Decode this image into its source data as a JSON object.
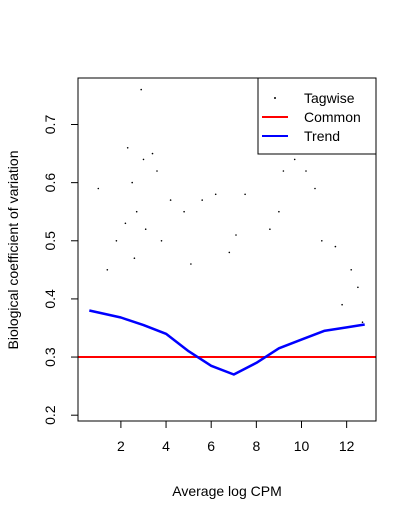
{
  "chart_data": {
    "type": "scatter",
    "title": "",
    "xlabel": "Average log CPM",
    "ylabel": "Biological coefficient of variation",
    "xlim": [
      0.1,
      13.3
    ],
    "ylim": [
      0.19,
      0.78
    ],
    "xticks": [
      2,
      4,
      6,
      8,
      10,
      12
    ],
    "yticks": [
      0.2,
      0.3,
      0.4,
      0.5,
      0.6,
      0.7
    ],
    "grid": false,
    "legend_position": "top-right",
    "legend": [
      {
        "label": "Tagwise",
        "kind": "point",
        "color": "#000000"
      },
      {
        "label": "Common",
        "kind": "line",
        "color": "#ff0000"
      },
      {
        "label": "Trend",
        "kind": "line",
        "color": "#0000ff"
      }
    ],
    "series": [
      {
        "name": "Tagwise",
        "kind": "points",
        "color": "#000000",
        "x": [
          2.9,
          2.3,
          3.0,
          3.4,
          2.5,
          1.0,
          3.6,
          4.2,
          5.6,
          6.2,
          7.5,
          8.1,
          9.2,
          10.2,
          9.7,
          10.6,
          1.8,
          2.2,
          2.7,
          3.1,
          11.5,
          12.2,
          12.5,
          4.8,
          7.1,
          9.0,
          3.8,
          6.8,
          8.6,
          10.9,
          1.4,
          2.6,
          5.1,
          11.8,
          12.7
        ],
        "y": [
          0.76,
          0.66,
          0.64,
          0.65,
          0.6,
          0.59,
          0.62,
          0.57,
          0.57,
          0.58,
          0.58,
          0.68,
          0.62,
          0.62,
          0.64,
          0.59,
          0.5,
          0.53,
          0.55,
          0.52,
          0.49,
          0.45,
          0.42,
          0.55,
          0.51,
          0.55,
          0.5,
          0.48,
          0.52,
          0.5,
          0.45,
          0.47,
          0.46,
          0.39,
          0.36
        ]
      },
      {
        "name": "Common",
        "kind": "hline",
        "color": "#ff0000",
        "y": 0.3
      },
      {
        "name": "Trend",
        "kind": "line",
        "color": "#0000ff",
        "x": [
          0.6,
          2.0,
          3.0,
          4.0,
          5.0,
          6.0,
          7.0,
          8.0,
          9.0,
          10.0,
          11.0,
          12.0,
          12.8
        ],
        "y": [
          0.38,
          0.368,
          0.355,
          0.34,
          0.31,
          0.285,
          0.27,
          0.29,
          0.315,
          0.33,
          0.345,
          0.351,
          0.356
        ]
      }
    ]
  }
}
